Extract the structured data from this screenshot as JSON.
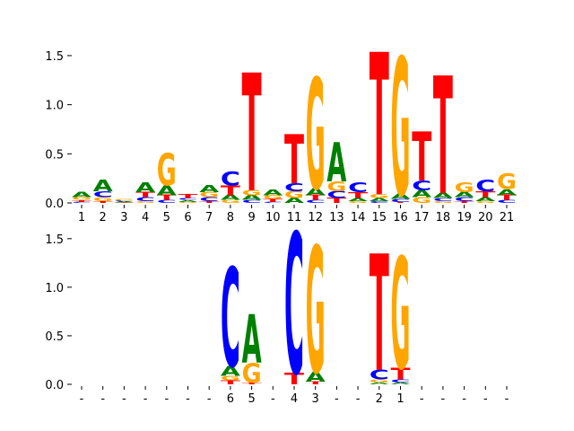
{
  "chart_data": [
    {
      "type": "logo",
      "categories": [
        "1",
        "2",
        "3",
        "4",
        "5",
        "6",
        "7",
        "8",
        "9",
        "10",
        "11",
        "12",
        "13",
        "14",
        "15",
        "16",
        "17",
        "18",
        "19",
        "20",
        "21"
      ],
      "series": [
        {
          "name": "A",
          "color": "#008000",
          "values": [
            0.05,
            0.12,
            0.01,
            0.1,
            0.1,
            0.02,
            0.07,
            0.05,
            0.05,
            0.06,
            0.05,
            0.07,
            0.4,
            0.03,
            0.03,
            0.05,
            0.07,
            0.05,
            0.05,
            0.04,
            0.06
          ]
        },
        {
          "name": "C",
          "color": "#0000ff",
          "values": [
            0.01,
            0.06,
            0.01,
            0.04,
            0.03,
            0.02,
            0.04,
            0.14,
            0.03,
            0.01,
            0.08,
            0.03,
            0.07,
            0.1,
            0.02,
            0.03,
            0.1,
            0.03,
            0.04,
            0.12,
            0.03
          ]
        },
        {
          "name": "G",
          "color": "#ffa500",
          "values": [
            0.03,
            0.04,
            0.015,
            0.02,
            0.33,
            0.01,
            0.05,
            0.03,
            0.05,
            0.04,
            0.07,
            1.13,
            0.1,
            0.02,
            0.04,
            1.4,
            0.06,
            0.02,
            0.1,
            0.02,
            0.16
          ]
        },
        {
          "name": "T",
          "color": "#ff0000",
          "values": [
            0.02,
            0.02,
            0.005,
            0.05,
            0.05,
            0.04,
            0.02,
            0.1,
            1.2,
            0.03,
            0.5,
            0.05,
            0.05,
            0.06,
            1.45,
            0.01,
            0.5,
            1.2,
            0.02,
            0.06,
            0.05
          ]
        }
      ],
      "ylim": [
        0,
        1.6
      ],
      "yticks": [
        {
          "value": 0,
          "label": "0.0"
        },
        0.5,
        {
          "value": 1,
          "label": "1.0"
        },
        1.5
      ]
    },
    {
      "type": "logo",
      "categories": [
        "-",
        "-",
        "-",
        "-",
        "-",
        "-",
        "-",
        "6",
        "5",
        "-",
        "4",
        "3",
        "-",
        "-",
        "2",
        "1",
        "-",
        "-",
        "-",
        "-",
        "-"
      ],
      "series": [
        {
          "name": "A",
          "color": "#008000",
          "values": [
            0,
            0,
            0,
            0,
            0,
            0,
            0,
            0.1,
            0.5,
            0,
            0,
            0.1,
            0,
            0,
            0.02,
            0.02,
            0,
            0,
            0,
            0,
            0
          ]
        },
        {
          "name": "C",
          "color": "#0000ff",
          "values": [
            0,
            0,
            0,
            0,
            0,
            0,
            0,
            1.02,
            0,
            0,
            1.45,
            0,
            0,
            0,
            0.1,
            0.03,
            0,
            0,
            0,
            0,
            0
          ]
        },
        {
          "name": "G",
          "color": "#ffa500",
          "values": [
            0,
            0,
            0,
            0,
            0,
            0,
            0,
            0.05,
            0.2,
            0,
            0,
            1.3,
            0,
            0,
            0.03,
            1.15,
            0,
            0,
            0,
            0,
            0
          ]
        },
        {
          "name": "T",
          "color": "#ff0000",
          "values": [
            0,
            0,
            0,
            0,
            0,
            0,
            0,
            0.04,
            0.02,
            0,
            0.12,
            0.03,
            0,
            0,
            1.2,
            0.12,
            0,
            0,
            0,
            0,
            0
          ]
        }
      ],
      "ylim": [
        0,
        1.6
      ],
      "yticks": [
        {
          "value": 0,
          "label": "0.0"
        },
        0.5,
        {
          "value": 1,
          "label": "1.0"
        },
        1.5
      ]
    }
  ]
}
